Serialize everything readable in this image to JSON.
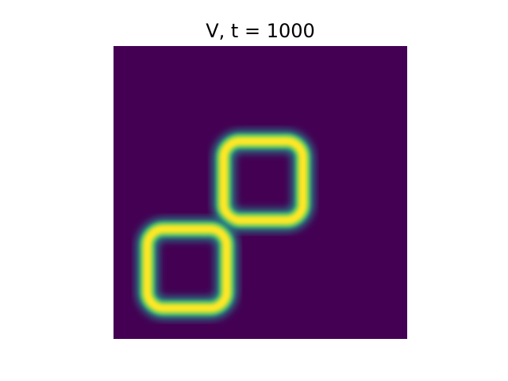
{
  "chart_data": {
    "type": "heatmap",
    "title": "V, t = 1000",
    "xlabel": "",
    "ylabel": "",
    "axes_visible": false,
    "colormap": "viridis",
    "background_value": 0,
    "colors": {
      "low": "#440154",
      "high": "#fde725"
    },
    "shapes": [
      {
        "name": "upper-right-loop",
        "shape": "rounded-square-ring",
        "center": [
          0.51,
          0.46
        ],
        "half_size": [
          0.135,
          0.135
        ],
        "thickness": 0.04,
        "peak_value": 1.0
      },
      {
        "name": "lower-left-loop",
        "shape": "rounded-square-ring",
        "center": [
          0.25,
          0.76
        ],
        "half_size": [
          0.135,
          0.135
        ],
        "thickness": 0.04,
        "peak_value": 1.0
      }
    ]
  }
}
